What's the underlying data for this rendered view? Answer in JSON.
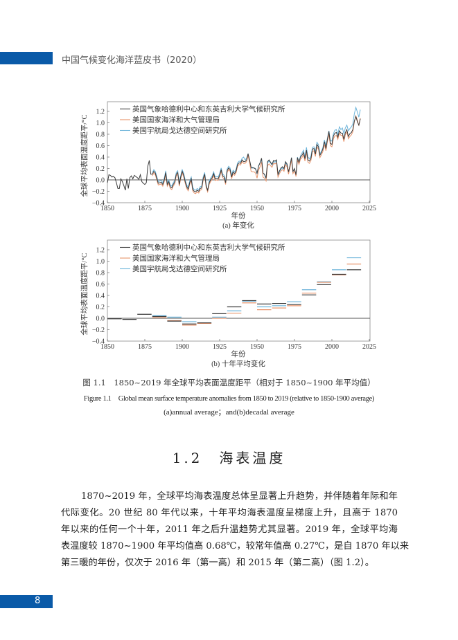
{
  "header": {
    "title": "中国气候变化海洋蓝皮书（2020）"
  },
  "footer": {
    "page_number": "8"
  },
  "colors": {
    "hadcrut": "#3a3a3a",
    "noaa": "#e8936a",
    "giss": "#6bb3d9",
    "brand_blue": "#0a5aa8"
  },
  "chart_data": [
    {
      "type": "line",
      "subtitle": "(a) 年变化",
      "xlabel": "年份",
      "ylabel": "全球平均表面温度距平/°C",
      "xlim": [
        1850,
        2025
      ],
      "ylim": [
        -0.4,
        1.4
      ],
      "xticks": [
        "1850",
        "1875",
        "1900",
        "1925",
        "1950",
        "1975",
        "2000",
        "2025"
      ],
      "yticks": [
        "-0.4",
        "-0.2",
        "0.0",
        "0.2",
        "0.4",
        "0.6",
        "0.8",
        "1.0",
        "1.2"
      ],
      "grid": false,
      "legend": "top-left",
      "series": [
        {
          "name": "英国气象哈德利中心和东英吉利大学气候研究所",
          "start": 1850,
          "values": [
            -0.05,
            0.09,
            0.08,
            0.05,
            0.06,
            0.04,
            -0.05,
            -0.15,
            -0.15,
            0.02,
            -0.03,
            -0.1,
            -0.18,
            0.02,
            -0.15,
            0.04,
            0.07,
            0.02,
            0.08,
            0.06,
            0.04,
            0.01,
            0.09,
            -0.03,
            -0.06,
            -0.08,
            -0.05,
            0.24,
            0.34,
            0.1,
            0.1,
            0.15,
            0.12,
            0.03,
            -0.06,
            -0.05,
            -0.04,
            -0.08,
            0.0,
            0.13,
            -0.08,
            -0.03,
            -0.12,
            -0.14,
            -0.08,
            -0.04,
            0.1,
            0.13,
            -0.08,
            0.05,
            0.15,
            0.08,
            -0.03,
            -0.12,
            -0.16,
            -0.05,
            0.02,
            -0.16,
            -0.2,
            -0.21,
            -0.18,
            -0.2,
            -0.15,
            -0.14,
            0.02,
            0.1,
            -0.11,
            -0.18,
            -0.05,
            0.0,
            0.04,
            0.11,
            0.02,
            0.03,
            0.02,
            0.08,
            0.18,
            0.07,
            0.05,
            -0.05,
            0.16,
            0.21,
            0.18,
            0.05,
            0.14,
            0.11,
            0.16,
            0.27,
            0.3,
            0.29,
            0.35,
            0.32,
            0.32,
            0.35,
            0.46,
            0.35,
            0.22,
            0.21,
            0.21,
            0.19,
            0.12,
            0.24,
            0.3,
            0.38,
            0.12,
            0.1,
            0.03,
            0.32,
            0.35,
            0.31,
            0.27,
            0.34,
            0.33,
            0.35,
            0.1,
            0.16,
            0.21,
            0.23,
            0.2,
            0.32,
            0.28,
            0.14,
            0.25,
            0.39,
            0.15,
            0.2,
            0.09,
            0.39,
            0.31,
            0.4,
            0.43,
            0.48,
            0.37,
            0.52,
            0.35,
            0.33,
            0.38,
            0.54,
            0.55,
            0.45,
            0.62,
            0.58,
            0.43,
            0.48,
            0.54,
            0.67,
            0.55,
            0.71,
            0.85,
            0.64,
            0.62,
            0.77,
            0.82,
            0.83,
            0.75,
            0.86,
            0.82,
            0.82,
            0.71,
            0.83,
            0.88,
            0.76,
            0.81,
            0.83,
            0.88,
            1.03,
            1.11,
            1.02,
            0.96,
            1.07
          ]
        },
        {
          "name": "美国国家海洋和大气管理局",
          "start": 1880,
          "values": [
            0.07,
            0.12,
            0.09,
            0.0,
            -0.09,
            -0.08,
            -0.07,
            -0.11,
            -0.03,
            0.1,
            -0.11,
            -0.06,
            -0.15,
            -0.17,
            -0.11,
            -0.07,
            0.07,
            0.1,
            -0.11,
            0.02,
            0.12,
            0.05,
            -0.06,
            -0.15,
            -0.19,
            -0.08,
            -0.01,
            -0.19,
            -0.23,
            -0.24,
            -0.21,
            -0.23,
            -0.18,
            -0.17,
            -0.01,
            0.07,
            -0.14,
            -0.21,
            -0.08,
            -0.03,
            0.01,
            0.08,
            -0.01,
            0.0,
            -0.01,
            0.05,
            0.15,
            0.04,
            0.02,
            -0.08,
            0.13,
            0.18,
            0.15,
            0.02,
            0.11,
            0.08,
            0.13,
            0.24,
            0.27,
            0.26,
            0.32,
            0.29,
            0.29,
            0.32,
            0.43,
            0.3,
            0.15,
            0.14,
            0.14,
            0.12,
            0.03,
            0.17,
            0.23,
            0.31,
            0.05,
            0.03,
            -0.02,
            0.25,
            0.28,
            0.25,
            0.22,
            0.29,
            0.28,
            0.3,
            0.05,
            0.11,
            0.16,
            0.18,
            0.15,
            0.27,
            0.23,
            0.1,
            0.21,
            0.35,
            0.11,
            0.16,
            0.06,
            0.35,
            0.27,
            0.36,
            0.39,
            0.44,
            0.33,
            0.48,
            0.31,
            0.29,
            0.34,
            0.5,
            0.51,
            0.41,
            0.58,
            0.54,
            0.39,
            0.44,
            0.5,
            0.62,
            0.51,
            0.67,
            0.8,
            0.6,
            0.58,
            0.72,
            0.77,
            0.78,
            0.71,
            0.82,
            0.78,
            0.78,
            0.67,
            0.79,
            0.84,
            0.72,
            0.76,
            0.79,
            0.84,
            1.02,
            1.12,
            1.05,
            0.95,
            1.08
          ]
        },
        {
          "name": "美国宇航局戈达德空间研究所",
          "start": 1880,
          "values": [
            0.13,
            0.18,
            0.15,
            0.06,
            -0.03,
            -0.02,
            -0.01,
            -0.05,
            0.03,
            0.16,
            -0.05,
            0.0,
            -0.09,
            -0.11,
            -0.05,
            -0.01,
            0.13,
            0.16,
            -0.05,
            0.08,
            0.18,
            0.11,
            0.0,
            -0.09,
            -0.13,
            -0.02,
            0.05,
            -0.13,
            -0.17,
            -0.18,
            -0.15,
            -0.17,
            -0.12,
            -0.11,
            0.05,
            0.13,
            -0.08,
            -0.2,
            -0.02,
            0.03,
            0.07,
            0.14,
            0.05,
            0.06,
            0.05,
            0.11,
            0.21,
            0.1,
            0.08,
            -0.02,
            0.19,
            0.24,
            0.21,
            0.08,
            0.17,
            0.14,
            0.19,
            0.3,
            0.33,
            0.32,
            0.38,
            0.4,
            0.35,
            0.38,
            0.45,
            0.33,
            0.2,
            0.22,
            0.21,
            0.2,
            0.1,
            0.25,
            0.3,
            0.36,
            0.12,
            0.09,
            0.02,
            0.3,
            0.33,
            0.3,
            0.26,
            0.32,
            0.31,
            0.33,
            0.08,
            0.14,
            0.19,
            0.21,
            0.18,
            0.3,
            0.26,
            0.13,
            0.24,
            0.39,
            0.14,
            0.19,
            0.09,
            0.4,
            0.31,
            0.42,
            0.47,
            0.52,
            0.4,
            0.57,
            0.4,
            0.37,
            0.42,
            0.57,
            0.58,
            0.49,
            0.66,
            0.62,
            0.46,
            0.5,
            0.57,
            0.7,
            0.6,
            0.73,
            0.86,
            0.69,
            0.68,
            0.81,
            0.87,
            0.88,
            0.8,
            0.93,
            0.88,
            0.91,
            0.81,
            0.91,
            0.96,
            0.86,
            0.9,
            0.93,
            0.98,
            1.16,
            1.27,
            1.19,
            1.1,
            1.23
          ]
        }
      ]
    },
    {
      "type": "step",
      "subtitle": "(b) 十年平均变化",
      "xlabel": "年份",
      "ylabel": "全球平均表面温度距平/°C",
      "xlim": [
        1850,
        2025
      ],
      "ylim": [
        -0.4,
        1.4
      ],
      "xticks": [
        "1850",
        "1875",
        "1900",
        "1925",
        "1950",
        "1975",
        "2000",
        "2025"
      ],
      "yticks": [
        "-0.4",
        "-0.2",
        "0.0",
        "0.2",
        "0.4",
        "0.6",
        "0.8",
        "1.0",
        "1.2"
      ],
      "grid": false,
      "legend": "top-left",
      "series": [
        {
          "name": "英国气象哈德利中心和东英吉利大学气候研究所",
          "decades_start": 1850,
          "values": [
            -0.01,
            -0.02,
            0.07,
            0.03,
            -0.05,
            -0.1,
            -0.08,
            0.08,
            0.2,
            0.31,
            0.25,
            0.26,
            0.24,
            0.41,
            0.59,
            0.77,
            0.85
          ]
        },
        {
          "name": "美国国家海洋和大气管理局",
          "decades_start": 1880,
          "values": [
            0.01,
            -0.04,
            -0.12,
            -0.09,
            0.0,
            0.09,
            0.27,
            0.15,
            0.18,
            0.22,
            0.44,
            0.63,
            0.76,
            0.95
          ]
        },
        {
          "name": "美国宇航局戈达德空间研究所",
          "decades_start": 1880,
          "values": [
            0.05,
            0.02,
            -0.06,
            -0.08,
            0.02,
            0.13,
            0.3,
            0.2,
            0.22,
            0.29,
            0.5,
            0.64,
            0.85,
            1.06
          ]
        }
      ]
    }
  ],
  "caption": {
    "cn": "图 1.1　1850~2019 年全球平均表面温度距平（相对于 1850~1900 年平均值）",
    "en": "Figure 1.1　Global mean surface temperature anomalies from 1850 to 2019 (relative to 1850-1900 average)",
    "en2": "(a)annual average；and(b)decadal average"
  },
  "section": {
    "title": "1.2　海表温度"
  },
  "body": {
    "lines": [
      "1870~2019 年，全球平均海表温度总体呈显著上升趋势，并伴随着年际和年",
      "代际变化。20 世纪 80 年代以来，十年平均海表温度呈梯度上升，且高于 1870",
      "年以来的任何一个十年，2011 年之后升温趋势尤其显著。2019 年，全球平均海",
      "表温度较 1870~1900 年平均值高 0.68℃，较常年值高 0.27℃，是自 1870 年以来",
      "第三暖的年份，仅次于 2016 年（第一高）和 2015 年（第二高）（图 1.2）。"
    ]
  }
}
